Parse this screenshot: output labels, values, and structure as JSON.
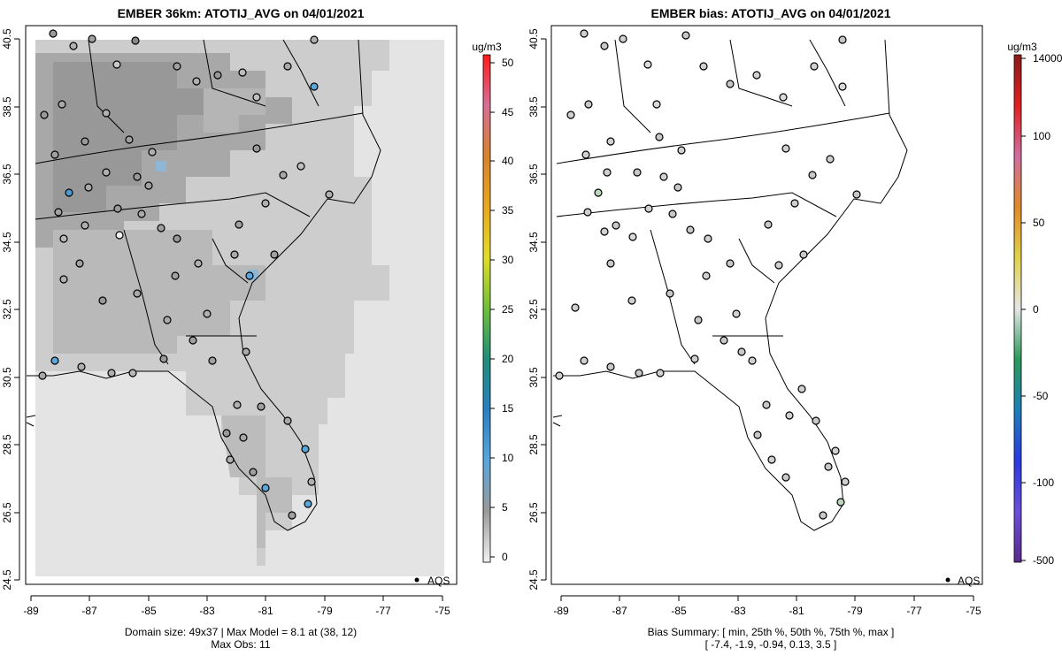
{
  "panels": {
    "left": {
      "title": "EMBER 36km: ATOTIJ_AVG on 04/01/2021",
      "footer_line1": "Domain size: 49x37 | Max Model = 8.1 at (38, 12)",
      "footer_line2": "Max Obs: 11",
      "legend_marker_label": "AQS"
    },
    "right": {
      "title": "EMBER bias: ATOTIJ_AVG on 04/01/2021",
      "footer_line1": "Bias Summary: [ min, 25th %, 50th %, 75th %, max ]",
      "footer_line2": "[ -7.4,   -1.9,   -0.94,   0.13,   3.5 ]",
      "legend_marker_label": "AQS"
    }
  },
  "axes": {
    "x_ticks": [
      "-89",
      "-87",
      "-85",
      "-83",
      "-81",
      "-79",
      "-77",
      "-75"
    ],
    "y_ticks": [
      "24.5",
      "26.5",
      "28.5",
      "30.5",
      "32.5",
      "34.5",
      "36.5",
      "38.5",
      "40.5"
    ]
  },
  "colorbars": {
    "left": {
      "units": "ug/m3",
      "tick_labels": [
        "0",
        "5",
        "10",
        "15",
        "20",
        "25",
        "30",
        "35",
        "40",
        "45",
        "50"
      ]
    },
    "right": {
      "units": "ug/m3",
      "tick_labels": [
        "-500",
        "-100",
        "-50",
        "0",
        "50",
        "100",
        "14000"
      ]
    }
  },
  "chart_data": {
    "type": "heatmap",
    "variable": "ATOTIJ_AVG",
    "date": "04/01/2021",
    "units": "ug/m3",
    "domain_size": "49x37",
    "max_model": 8.1,
    "max_model_location": [
      38,
      12
    ],
    "max_obs": 11,
    "xlim": [
      -89,
      -75
    ],
    "ylim": [
      24.5,
      40.5
    ],
    "bias_summary": {
      "min": -7.4,
      "p25": -1.9,
      "p50": -0.94,
      "p75": 0.13,
      "max": 3.5
    },
    "left_colorbar_range": [
      0,
      50
    ],
    "right_colorbar_ticks": [
      -500,
      -100,
      -50,
      0,
      50,
      100,
      14000
    ],
    "observation_network": "AQS"
  }
}
